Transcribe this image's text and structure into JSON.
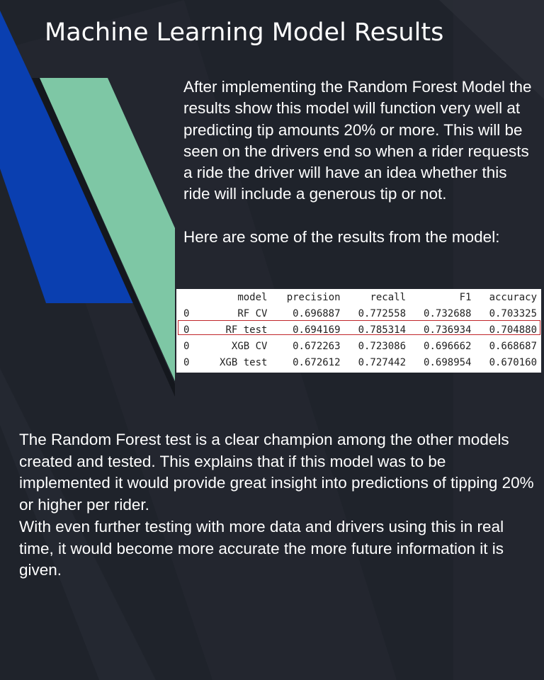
{
  "slide": {
    "title": "Machine Learning Model Results",
    "intro_paragraph": "After implementing the Random Forest Model the results show this model will function very well at predicting tip amounts 20% or more. This will be seen on the drivers end so when a rider requests a ride the driver will have an idea whether this ride will include a generous tip or not.",
    "results_lead": "Here are some of the results from the model:",
    "conclusion_paragraph_1": "The Random Forest test is a clear champion among the other models created and tested. This explains that if this model was to be implemented it would provide great insight into predictions of tipping 20% or higher per rider.",
    "conclusion_paragraph_2": "With even further testing with more data and drivers using this in real time, it would become more accurate the more future information it is given."
  },
  "results_table": {
    "columns": [
      "",
      "model",
      "precision",
      "recall",
      "F1",
      "accuracy"
    ],
    "rows": [
      [
        "0",
        "RF CV",
        "0.696887",
        "0.772558",
        "0.732688",
        "0.703325"
      ],
      [
        "0",
        "RF test",
        "0.694169",
        "0.785314",
        "0.736934",
        "0.704880"
      ],
      [
        "0",
        "XGB CV",
        "0.672263",
        "0.723086",
        "0.696662",
        "0.668687"
      ],
      [
        "0",
        "XGB test",
        "0.672612",
        "0.727442",
        "0.698954",
        "0.670160"
      ]
    ],
    "highlighted_row": "RF test"
  },
  "colors": {
    "background": "#1f232b",
    "blue_stripe": "#0a3fb0",
    "green_stripe": "#7ec7a5",
    "highlight_border": "#c0262b",
    "text": "#ffffff"
  }
}
